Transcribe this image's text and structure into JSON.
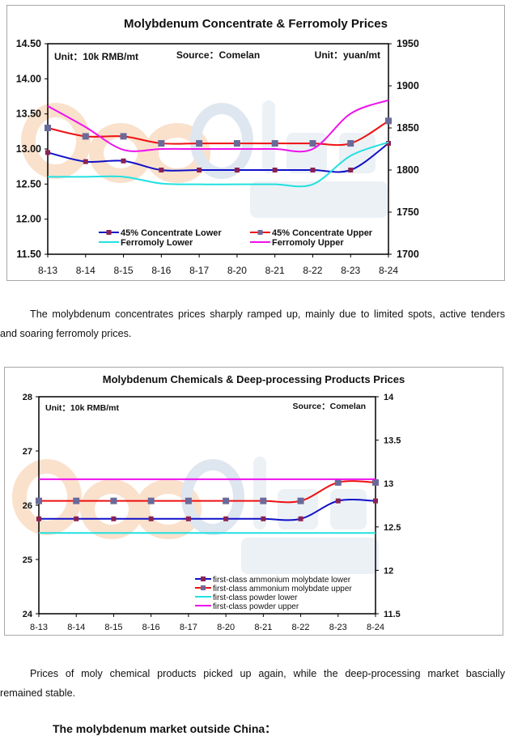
{
  "chart_data": [
    {
      "type": "line",
      "title": "Molybdenum Concentrate & Ferromoly Prices",
      "annotations": {
        "unit_left": "Unit：10k RMB/mt",
        "source": "Source：Comelan",
        "unit_right": "Unit：yuan/mt"
      },
      "watermark": {
        "part1": "Com",
        "part2": "lan",
        "part3": ".com",
        "part4": "亿览网"
      },
      "categories": [
        "8-13",
        "8-14",
        "8-15",
        "8-16",
        "8-17",
        "8-20",
        "8-21",
        "8-22",
        "8-23",
        "8-24"
      ],
      "y_left": {
        "min": 11.5,
        "max": 14.5,
        "ticks": [
          "11.50",
          "12.00",
          "12.50",
          "13.00",
          "13.50",
          "14.00",
          "14.50"
        ]
      },
      "y_right": {
        "min": 1700,
        "max": 1950,
        "ticks": [
          "1700",
          "1750",
          "1800",
          "1850",
          "1900",
          "1950"
        ]
      },
      "legend_placement": "bottom-inside",
      "series": [
        {
          "name": "45% Concentrate Lower",
          "axis": "left",
          "color": "#1010c8",
          "marker": "#8b2252",
          "values": [
            12.95,
            12.82,
            12.83,
            12.7,
            12.7,
            12.7,
            12.7,
            12.7,
            12.7,
            13.08
          ]
        },
        {
          "name": "45% Concentrate Upper",
          "axis": "left",
          "color": "#ee1111",
          "marker": "#6a6a9a",
          "values": [
            13.3,
            13.18,
            13.18,
            13.08,
            13.08,
            13.08,
            13.08,
            13.08,
            13.08,
            13.4
          ]
        },
        {
          "name": "Ferromoly Lower",
          "axis": "right",
          "color": "#22e0e0",
          "marker": null,
          "values": [
            1792,
            1792,
            1792,
            1784,
            1783,
            1783,
            1783,
            1783,
            1817,
            1833
          ]
        },
        {
          "name": "Ferromoly Upper",
          "axis": "right",
          "color": "#ee11ee",
          "marker": null,
          "values": [
            1876,
            1851,
            1824,
            1825,
            1825,
            1825,
            1825,
            1825,
            1867,
            1883
          ]
        }
      ]
    },
    {
      "type": "line",
      "title": "Molybdenum Chemicals & Deep-processing Products Prices",
      "annotations": {
        "unit_left": "Unit：10k RMB/mt",
        "source": "Source：Comelan"
      },
      "watermark": {
        "part1": "Com",
        "part2": "lan",
        "part3": ".com",
        "part4": "亿览网"
      },
      "categories": [
        "8-13",
        "8-14",
        "8-15",
        "8-16",
        "8-17",
        "8-20",
        "8-21",
        "8-22",
        "8-23",
        "8-24"
      ],
      "y_left": {
        "min": 24,
        "max": 28,
        "ticks": [
          "24",
          "25",
          "26",
          "27",
          "28"
        ]
      },
      "y_right": {
        "min": 11.5,
        "max": 14,
        "ticks": [
          "11.5",
          "12",
          "12.5",
          "13",
          "13.5",
          "14"
        ]
      },
      "legend_placement": "bottom-right-inside",
      "series": [
        {
          "name": "first-class ammonium molybdate lower",
          "axis": "left",
          "color": "#1010c8",
          "marker": "#8b2252",
          "values": [
            25.75,
            25.75,
            25.75,
            25.75,
            25.75,
            25.75,
            25.75,
            25.75,
            26.08,
            26.08
          ]
        },
        {
          "name": "first-class ammonium molybdate upper",
          "axis": "left",
          "color": "#ee1111",
          "marker": "#6a6a9a",
          "values": [
            26.08,
            26.08,
            26.08,
            26.08,
            26.08,
            26.08,
            26.08,
            26.08,
            26.42,
            26.42
          ]
        },
        {
          "name": "first-class powder lower",
          "axis": "right",
          "color": "#22e0e0",
          "marker": null,
          "values": [
            12.43,
            12.43,
            12.43,
            12.43,
            12.43,
            12.43,
            12.43,
            12.43,
            12.43,
            12.43
          ]
        },
        {
          "name": "first-class powder upper",
          "axis": "right",
          "color": "#ee11ee",
          "marker": null,
          "values": [
            13.05,
            13.05,
            13.05,
            13.05,
            13.05,
            13.05,
            13.05,
            13.05,
            13.05,
            13.05
          ]
        }
      ]
    }
  ],
  "text": {
    "para1_line1": "The molybdenum concentrates prices sharply ramped up, mainly due to limited spots, active tenders",
    "para1_line2": "and soaring ferromoly prices.",
    "para2_line1": "Prices of moly chemical products picked up again, while the deep-processing market bascially",
    "para2_line2": "remained stable.",
    "heading": "The molybdenum market outside China："
  }
}
